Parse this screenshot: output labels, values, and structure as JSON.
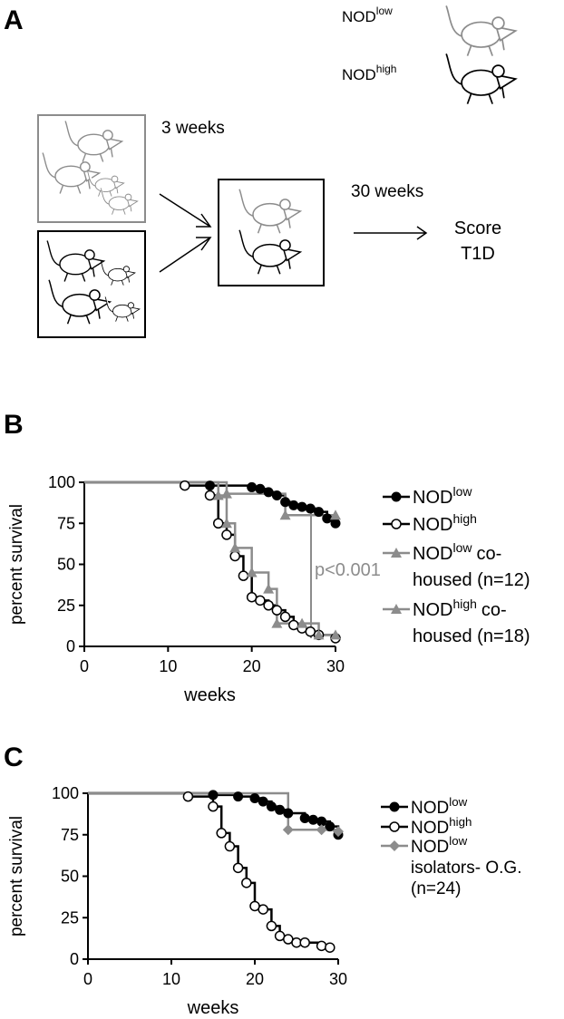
{
  "panel_a": {
    "label": "A",
    "legend": [
      {
        "name": "NOD",
        "sup": "low"
      },
      {
        "name": "NOD",
        "sup": "high"
      }
    ],
    "step1": "3 weeks",
    "step2": "30 weeks",
    "outcome": [
      "Score",
      "T1D"
    ]
  },
  "chart_data": [
    {
      "type": "step",
      "panel": "B",
      "xlabel": "weeks",
      "ylabel": "percent survival",
      "xlim": [
        0,
        30
      ],
      "xticks": [
        0,
        10,
        20,
        30
      ],
      "ylim": [
        0,
        100
      ],
      "yticks": [
        0,
        25,
        50,
        75,
        100
      ],
      "annotation": "p<0.001",
      "annotation_color": "#8c8c8c",
      "series": [
        {
          "name": "NOD",
          "name_sup": "low",
          "color": "#000000",
          "marker": "filled-circle",
          "x": [
            0,
            15,
            20,
            21,
            22,
            23,
            24,
            25,
            26,
            27,
            28,
            29,
            30
          ],
          "values": [
            100,
            98,
            97,
            96,
            94,
            92,
            88,
            86,
            85,
            84,
            82,
            78,
            75
          ]
        },
        {
          "name": "NOD",
          "name_sup": "high",
          "color": "#000000",
          "marker": "open-circle",
          "x": [
            0,
            12,
            15,
            16,
            17,
            18,
            19,
            20,
            21,
            22,
            23,
            24,
            25,
            26,
            27,
            28,
            30
          ],
          "values": [
            100,
            98,
            92,
            75,
            68,
            55,
            43,
            30,
            28,
            25,
            22,
            18,
            13,
            11,
            9,
            7,
            5
          ]
        },
        {
          "name": "NOD",
          "name_sup": "low",
          "name_suffix": [
            "co-",
            "housed (n=12)"
          ],
          "color": "#8c8c8c",
          "marker": "triangle",
          "x": [
            0,
            17,
            24,
            30
          ],
          "values": [
            100,
            93,
            80,
            80
          ]
        },
        {
          "name": "NOD",
          "name_sup": "high",
          "name_suffix": [
            "co-",
            "housed (n=18)"
          ],
          "color": "#8c8c8c",
          "marker": "triangle",
          "x": [
            0,
            16,
            17,
            18,
            20,
            22,
            23,
            26,
            28,
            30
          ],
          "values": [
            100,
            92,
            75,
            60,
            45,
            35,
            14,
            14,
            7,
            7
          ]
        }
      ]
    },
    {
      "type": "step",
      "panel": "C",
      "xlabel": "weeks",
      "ylabel": "percent survival",
      "xlim": [
        0,
        30
      ],
      "xticks": [
        0,
        10,
        20,
        30
      ],
      "ylim": [
        0,
        100
      ],
      "yticks": [
        0,
        25,
        50,
        75,
        100
      ],
      "series": [
        {
          "name": "NOD",
          "name_sup": "low",
          "color": "#000000",
          "marker": "filled-circle",
          "x": [
            0,
            15,
            18,
            20,
            21,
            22,
            23,
            24,
            26,
            27,
            28,
            29,
            30
          ],
          "values": [
            100,
            99,
            98,
            97,
            95,
            92,
            90,
            88,
            85,
            84,
            83,
            80,
            75
          ]
        },
        {
          "name": "NOD",
          "name_sup": "high",
          "color": "#000000",
          "marker": "open-circle",
          "x": [
            0,
            12,
            15,
            16,
            17,
            18,
            19,
            20,
            21,
            22,
            23,
            24,
            25,
            26,
            28,
            29
          ],
          "values": [
            100,
            98,
            92,
            76,
            68,
            55,
            46,
            32,
            30,
            20,
            14,
            12,
            10,
            10,
            8,
            7
          ]
        },
        {
          "name": "NOD",
          "name_sup": "low",
          "name_suffix": [
            "isolators- O.G.",
            "(n=24)"
          ],
          "color": "#8c8c8c",
          "marker": "diamond",
          "x": [
            0,
            24,
            28,
            30
          ],
          "values": [
            100,
            78,
            78,
            77
          ]
        }
      ]
    }
  ]
}
